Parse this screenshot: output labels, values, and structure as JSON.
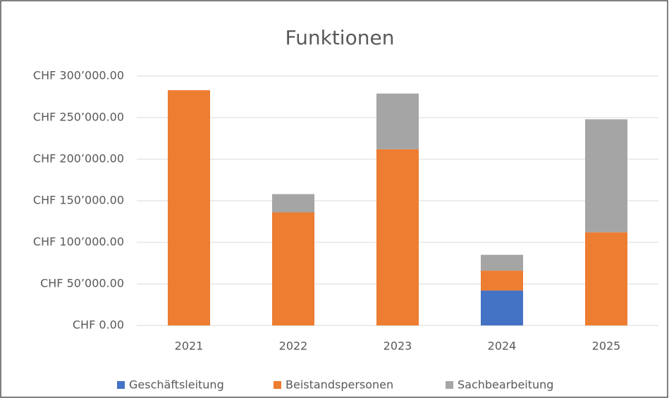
{
  "chart_data": {
    "type": "stacked_bar",
    "title": "Funktionen",
    "categories": [
      "2021",
      "2022",
      "2023",
      "2024",
      "2025"
    ],
    "series": [
      {
        "name": "Geschäftsleitung",
        "color": "#4472c4",
        "values": [
          0,
          0,
          0,
          42000,
          0
        ]
      },
      {
        "name": "Beistandspersonen",
        "color": "#ed7d31",
        "values": [
          283000,
          136000,
          212000,
          24000,
          112000
        ]
      },
      {
        "name": "Sachbearbeitung",
        "color": "#a5a5a5",
        "values": [
          0,
          22000,
          67000,
          19000,
          136000
        ]
      }
    ],
    "ylim": [
      0,
      300000
    ],
    "yticks": [
      {
        "value": 0,
        "label": "CHF 0.00"
      },
      {
        "value": 50000,
        "label": "CHF 50’000.00"
      },
      {
        "value": 100000,
        "label": "CHF 100’000.00"
      },
      {
        "value": 150000,
        "label": "CHF 150’000.00"
      },
      {
        "value": 200000,
        "label": "CHF 200’000.00"
      },
      {
        "value": 250000,
        "label": "CHF 250’000.00"
      },
      {
        "value": 300000,
        "label": "CHF 300’000.00"
      }
    ],
    "grid": true,
    "legend": "bottom"
  }
}
